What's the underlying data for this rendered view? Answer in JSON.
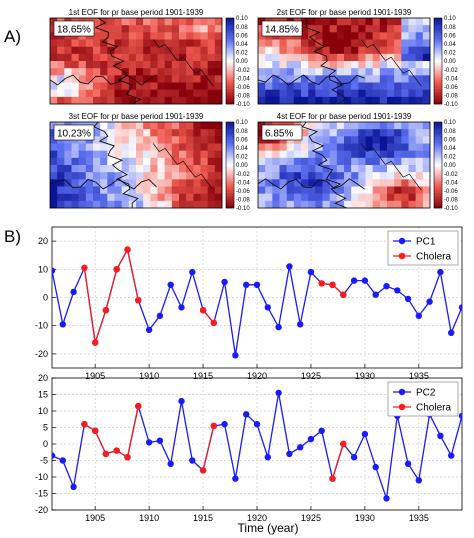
{
  "figure": {
    "panel_a_label": "A)",
    "panel_b_label": "B)",
    "xlabel": "Time (year)"
  },
  "colors": {
    "pc_line": "#1a1aff",
    "cholera_line": "#ff1a1a",
    "grid": "#cccccc",
    "map_red": "#c0121e",
    "map_blue": "#1626c8",
    "coast": "#111111"
  },
  "chart_data": [
    {
      "type": "heatmap",
      "title": "1st EOF for pr base period 1901-1939",
      "percent": "18.65%",
      "colorbar_ticks": [
        "0.10",
        "0.08",
        "0.06",
        "0.04",
        "0.02",
        "0.00",
        "-0.02",
        "-0.04",
        "-0.06",
        "-0.08",
        "-0.10"
      ],
      "vmin": -0.1,
      "vmax": 0.1,
      "pattern": "mode1"
    },
    {
      "type": "heatmap",
      "title": "2st EOF for pr base period 1901-1939",
      "percent": "14.85%",
      "colorbar_ticks": [
        "0.10",
        "0.08",
        "0.06",
        "0.04",
        "0.02",
        "0.00",
        "-0.02",
        "-0.04",
        "-0.06",
        "-0.08",
        "-0.10"
      ],
      "vmin": -0.1,
      "vmax": 0.1,
      "pattern": "mode2"
    },
    {
      "type": "heatmap",
      "title": "3st EOF for pr base period 1901-1939",
      "percent": "10.23%",
      "colorbar_ticks": [
        "0.10",
        "0.08",
        "0.06",
        "0.04",
        "0.02",
        "0.00",
        "-0.02",
        "-0.04",
        "-0.06",
        "-0.08",
        "-0.10"
      ],
      "vmin": -0.1,
      "vmax": 0.1,
      "pattern": "mode3"
    },
    {
      "type": "heatmap",
      "title": "4st EOF for pr base period 1901-1939",
      "percent": "6.85%",
      "colorbar_ticks": [
        "0.10",
        "0.08",
        "0.06",
        "0.04",
        "0.02",
        "0.00",
        "-0.02",
        "-0.04",
        "-0.06",
        "-0.08",
        "-0.10"
      ],
      "vmin": -0.1,
      "vmax": 0.1,
      "pattern": "mode4"
    },
    {
      "type": "line",
      "x": [
        1901,
        1902,
        1903,
        1904,
        1905,
        1906,
        1907,
        1908,
        1909,
        1910,
        1911,
        1912,
        1913,
        1914,
        1915,
        1916,
        1917,
        1918,
        1919,
        1920,
        1921,
        1922,
        1923,
        1924,
        1925,
        1926,
        1927,
        1928,
        1929,
        1930,
        1931,
        1932,
        1933,
        1934,
        1935,
        1936,
        1937,
        1938,
        1939
      ],
      "series": [
        {
          "name": "PC1",
          "values": [
            9.5,
            -9.5,
            2,
            10.5,
            -16,
            -4.5,
            10,
            17,
            -1,
            -11.5,
            -6.5,
            4.5,
            -3.5,
            9,
            -4.5,
            -9,
            5.5,
            -20.5,
            4.5,
            4.5,
            -3.5,
            -10.5,
            11,
            -9.5,
            9,
            5,
            4.5,
            1,
            6,
            6,
            1,
            4,
            2.5,
            -0.5,
            -6.5,
            -1.5,
            9,
            -12.5,
            -3.5
          ]
        },
        {
          "name": "Cholera",
          "points": [
            [
              1904,
              10.5
            ],
            [
              1905,
              -16
            ],
            [
              1906,
              -4.5
            ],
            [
              1907,
              10
            ],
            [
              1908,
              17
            ],
            [
              1909,
              -1
            ],
            null,
            [
              1915,
              -4.5
            ],
            [
              1916,
              -9
            ],
            null,
            [
              1926,
              5
            ],
            [
              1927,
              4.5
            ],
            [
              1928,
              1
            ]
          ]
        }
      ],
      "xlim": [
        1901,
        1939
      ],
      "ylim": [
        -25,
        25
      ],
      "xticks": [
        1905,
        1910,
        1915,
        1920,
        1925,
        1930,
        1935
      ],
      "yticks": [
        20,
        10,
        0,
        -10,
        -20
      ],
      "legend": "top-right",
      "grid": true
    },
    {
      "type": "line",
      "x": [
        1901,
        1902,
        1903,
        1904,
        1905,
        1906,
        1907,
        1908,
        1909,
        1910,
        1911,
        1912,
        1913,
        1914,
        1915,
        1916,
        1917,
        1918,
        1919,
        1920,
        1921,
        1922,
        1923,
        1924,
        1925,
        1926,
        1927,
        1928,
        1929,
        1930,
        1931,
        1932,
        1933,
        1934,
        1935,
        1936,
        1937,
        1938,
        1939
      ],
      "series": [
        {
          "name": "PC2",
          "values": [
            -3.5,
            -5,
            -13,
            6,
            4,
            -3,
            -2,
            -4,
            11.5,
            0.5,
            1,
            -6,
            13,
            -5,
            -8,
            5.5,
            6,
            -10.5,
            9,
            6,
            -4,
            15.5,
            -3,
            -1,
            1.5,
            4,
            -10.5,
            0,
            -4,
            3,
            -7,
            -16.5,
            8.5,
            -6,
            -11,
            9,
            2.5,
            -3.5,
            8.5
          ]
        },
        {
          "name": "Cholera",
          "points": [
            [
              1904,
              6
            ],
            [
              1905,
              4
            ],
            [
              1906,
              -3
            ],
            [
              1907,
              -2
            ],
            [
              1908,
              -4
            ],
            [
              1909,
              11.5
            ],
            null,
            [
              1915,
              -8
            ],
            [
              1916,
              5.5
            ],
            null,
            [
              1927,
              -10.5
            ],
            [
              1928,
              0
            ]
          ]
        }
      ],
      "xlim": [
        1901,
        1939
      ],
      "ylim": [
        -20,
        20
      ],
      "xticks": [
        1905,
        1910,
        1915,
        1920,
        1925,
        1930,
        1935
      ],
      "yticks": [
        20,
        15,
        10,
        5,
        0,
        -5,
        -10,
        -15,
        -20
      ],
      "legend": "top-right",
      "grid": true
    }
  ]
}
